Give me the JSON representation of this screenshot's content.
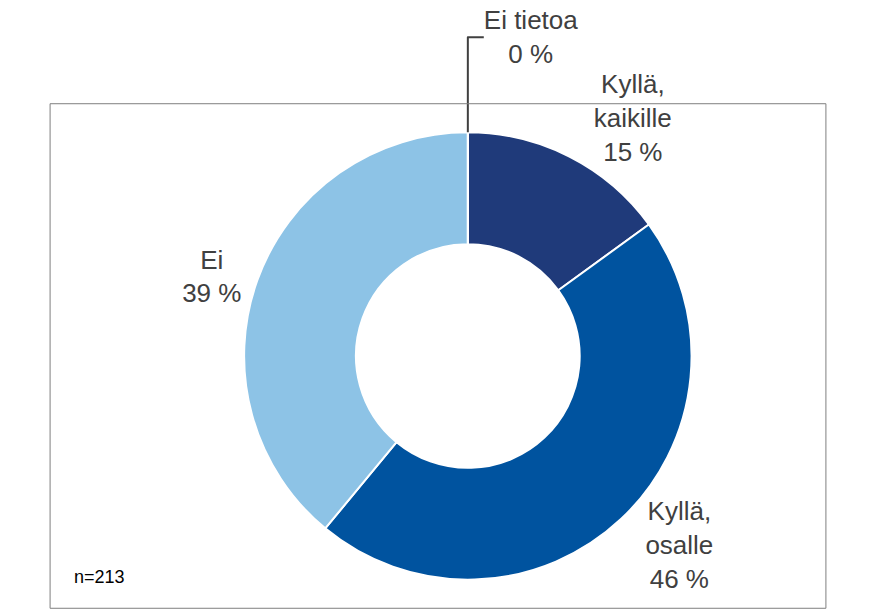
{
  "chart_data": {
    "type": "pie",
    "categories": [
      "Kyllä, kaikille",
      "Kyllä, osalle",
      "Ei",
      "Ei tietoa"
    ],
    "values": [
      15,
      46,
      39,
      0
    ],
    "value_labels": [
      "15 %",
      "46 %",
      "39 %",
      "0 %"
    ],
    "colors": [
      "#1f3a7a",
      "#00539f",
      "#8dc3e6",
      "#d9d9d9"
    ],
    "data_labels": true,
    "annotations": [
      "n=213"
    ]
  }
}
